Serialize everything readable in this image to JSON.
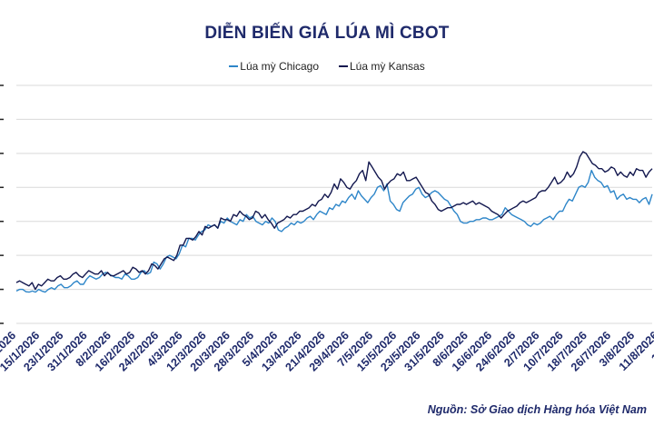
{
  "title": "DIỄN BIẾN GIÁ LÚA MÌ CBOT",
  "source": "Nguồn: Sở Giao dịch Hàng hóa Việt Nam",
  "colors": {
    "chicago": "#2e86c9",
    "kansas": "#13184f",
    "grid": "#d9d9d9",
    "title": "#1f2a6b"
  },
  "chart_data": {
    "type": "line",
    "title": "DIỄN BIẾN GIÁ LÚA MÌ CBOT",
    "xlabel": "",
    "ylabel": "",
    "legend_position": "top-center",
    "grid": true,
    "ylim": [
      0,
      7
    ],
    "y_tick_count": 8,
    "x_tick_labels": [
      "/1/2026",
      "15/1/2026",
      "23/1/2026",
      "31/1/2026",
      "8/2/2026",
      "16/2/2026",
      "24/2/2026",
      "4/3/2026",
      "12/3/2026",
      "20/3/2026",
      "28/3/2026",
      "5/4/2026",
      "13/4/2026",
      "21/4/2026",
      "29/4/2026",
      "7/5/2026",
      "15/5/2026",
      "23/5/2026",
      "31/5/2026",
      "8/6/2026",
      "16/6/2026",
      "24/6/2026",
      "2/7/2026",
      "10/7/2026",
      "18/7/2026",
      "26/7/2026",
      "3/8/2026",
      "11/8/2026",
      "19/8/20"
    ],
    "series": [
      {
        "name": "Lúa mỳ Chicago",
        "color": "#2e86c9",
        "values": [
          0.95,
          1.0,
          1.0,
          0.93,
          0.92,
          0.95,
          0.92,
          1.0,
          0.95,
          0.92,
          1.0,
          1.05,
          1.0,
          1.1,
          1.15,
          1.05,
          1.05,
          1.1,
          1.2,
          1.25,
          1.15,
          1.15,
          1.3,
          1.4,
          1.35,
          1.3,
          1.35,
          1.45,
          1.5,
          1.45,
          1.4,
          1.35,
          1.35,
          1.3,
          1.45,
          1.4,
          1.3,
          1.3,
          1.35,
          1.5,
          1.55,
          1.45,
          1.5,
          1.8,
          1.75,
          1.6,
          1.75,
          1.95,
          2.0,
          1.95,
          1.9,
          2.05,
          2.3,
          2.25,
          2.5,
          2.5,
          2.45,
          2.6,
          2.7,
          2.75,
          2.9,
          2.85,
          2.9,
          2.8,
          3.0,
          2.95,
          3.1,
          3.0,
          2.95,
          2.9,
          3.05,
          3.0,
          3.2,
          3.1,
          3.15,
          3.0,
          2.95,
          2.9,
          3.0,
          2.95,
          3.1,
          3.0,
          2.75,
          2.7,
          2.8,
          2.85,
          2.95,
          2.9,
          3.0,
          2.95,
          3.0,
          3.1,
          3.15,
          3.05,
          3.2,
          3.3,
          3.25,
          3.2,
          3.4,
          3.35,
          3.5,
          3.45,
          3.6,
          3.55,
          3.7,
          3.8,
          3.65,
          3.9,
          3.75,
          3.65,
          3.55,
          3.7,
          3.8,
          4.0,
          4.05,
          3.9,
          4.1,
          3.6,
          3.5,
          3.35,
          3.3,
          3.55,
          3.65,
          3.75,
          3.8,
          3.95,
          4.0,
          3.8,
          3.7,
          3.75,
          3.85,
          3.9,
          3.85,
          3.75,
          3.65,
          3.6,
          3.45,
          3.3,
          3.2,
          3.0,
          2.95,
          2.95,
          3.0,
          3.0,
          3.05,
          3.05,
          3.1,
          3.1,
          3.05,
          3.05,
          3.1,
          3.15,
          3.2,
          3.4,
          3.3,
          3.2,
          3.15,
          3.1,
          3.05,
          3.0,
          2.9,
          2.85,
          2.95,
          2.9,
          2.95,
          3.05,
          3.1,
          3.15,
          3.05,
          3.2,
          3.3,
          3.3,
          3.5,
          3.65,
          3.6,
          3.8,
          4.0,
          4.05,
          4.0,
          4.15,
          4.5,
          4.3,
          4.2,
          4.15,
          4.0,
          4.05,
          3.85,
          3.9,
          3.65,
          3.75,
          3.8,
          3.65,
          3.7,
          3.65,
          3.65,
          3.55,
          3.65,
          3.7,
          3.5,
          3.8
        ]
      },
      {
        "name": "Lúa mỳ Kansas",
        "color": "#13184f",
        "values": [
          1.2,
          1.25,
          1.2,
          1.15,
          1.1,
          1.2,
          1.0,
          1.15,
          1.1,
          1.2,
          1.3,
          1.25,
          1.25,
          1.35,
          1.4,
          1.3,
          1.3,
          1.35,
          1.45,
          1.5,
          1.4,
          1.35,
          1.45,
          1.55,
          1.5,
          1.45,
          1.45,
          1.55,
          1.4,
          1.5,
          1.4,
          1.4,
          1.45,
          1.5,
          1.55,
          1.45,
          1.5,
          1.65,
          1.6,
          1.5,
          1.55,
          1.45,
          1.55,
          1.75,
          1.7,
          1.6,
          1.75,
          1.9,
          1.95,
          1.9,
          1.85,
          2.0,
          2.3,
          2.3,
          2.5,
          2.5,
          2.45,
          2.55,
          2.7,
          2.6,
          2.85,
          2.8,
          2.85,
          2.9,
          2.8,
          3.1,
          3.05,
          3.05,
          3.0,
          3.2,
          3.15,
          3.3,
          3.2,
          3.15,
          3.05,
          3.1,
          3.3,
          3.25,
          3.1,
          3.2,
          3.05,
          2.95,
          2.8,
          2.95,
          3.0,
          3.05,
          3.15,
          3.1,
          3.2,
          3.2,
          3.3,
          3.3,
          3.35,
          3.4,
          3.5,
          3.45,
          3.6,
          3.65,
          3.8,
          3.7,
          3.85,
          4.1,
          3.95,
          4.25,
          4.15,
          4.0,
          3.95,
          4.1,
          4.2,
          4.4,
          4.5,
          4.2,
          4.75,
          4.6,
          4.45,
          4.3,
          4.2,
          3.95,
          4.1,
          4.2,
          4.25,
          4.4,
          4.35,
          4.45,
          4.2,
          4.2,
          4.25,
          4.3,
          4.15,
          4.0,
          3.85,
          3.8,
          3.6,
          3.5,
          3.35,
          3.3,
          3.35,
          3.4,
          3.4,
          3.45,
          3.5,
          3.5,
          3.55,
          3.5,
          3.55,
          3.6,
          3.5,
          3.55,
          3.5,
          3.45,
          3.4,
          3.3,
          3.25,
          3.2,
          3.1,
          3.2,
          3.3,
          3.35,
          3.4,
          3.45,
          3.55,
          3.6,
          3.55,
          3.6,
          3.65,
          3.7,
          3.85,
          3.9,
          3.9,
          4.0,
          4.15,
          4.3,
          4.1,
          4.15,
          4.25,
          4.45,
          4.3,
          4.4,
          4.6,
          4.9,
          5.05,
          5.0,
          4.85,
          4.7,
          4.65,
          4.55,
          4.55,
          4.45,
          4.5,
          4.6,
          4.55,
          4.35,
          4.45,
          4.35,
          4.3,
          4.45,
          4.35,
          4.55,
          4.5,
          4.5,
          4.3,
          4.45,
          4.55
        ]
      }
    ]
  }
}
